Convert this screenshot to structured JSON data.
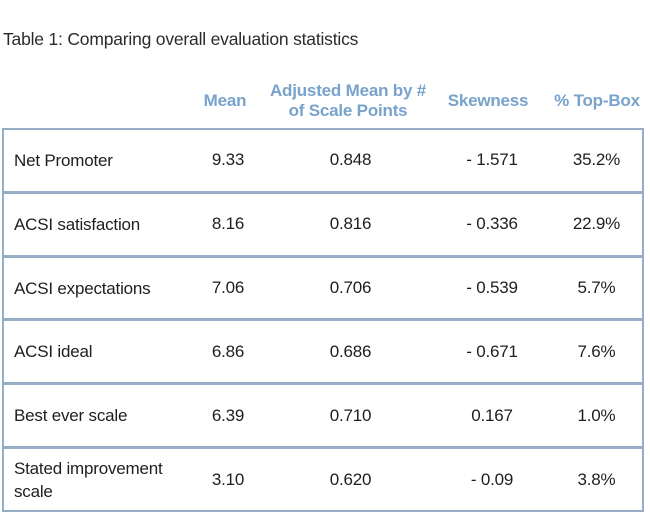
{
  "chart_data": {
    "type": "table",
    "title": "Table 1: Comparing overall evaluation statistics",
    "columns": [
      "Mean",
      "Adjusted Mean by # of Scale Points",
      "Skewness",
      "% Top-Box"
    ],
    "row_labels": [
      "Net Promoter",
      "ACSI satisfaction",
      "ACSI expectations",
      "ACSI ideal",
      "Best ever scale",
      "Stated improvement scale"
    ],
    "rows": [
      {
        "label": "Net Promoter",
        "mean": "9.33",
        "adjusted": "0.848",
        "skewness": "- 1.571",
        "topbox": "35.2%"
      },
      {
        "label": "ACSI satisfaction",
        "mean": "8.16",
        "adjusted": "0.816",
        "skewness": "- 0.336",
        "topbox": "22.9%"
      },
      {
        "label": "ACSI expectations",
        "mean": "7.06",
        "adjusted": "0.706",
        "skewness": "- 0.539",
        "topbox": "5.7%"
      },
      {
        "label": "ACSI ideal",
        "mean": "6.86",
        "adjusted": "0.686",
        "skewness": "- 0.671",
        "topbox": "7.6%"
      },
      {
        "label": "Best ever scale",
        "mean": "6.39",
        "adjusted": "0.710",
        "skewness": "0.167",
        "topbox": "1.0%"
      },
      {
        "label": "Stated improvement scale",
        "mean": "3.10",
        "adjusted": "0.620",
        "skewness": "- 0.09",
        "topbox": "3.8%"
      }
    ]
  },
  "colors": {
    "header_text": "#78a3cc",
    "table_border": "#96adc8",
    "caption_text": "#2b2b2b",
    "body_text": "#1e1e1e",
    "background": "#ffffff"
  }
}
